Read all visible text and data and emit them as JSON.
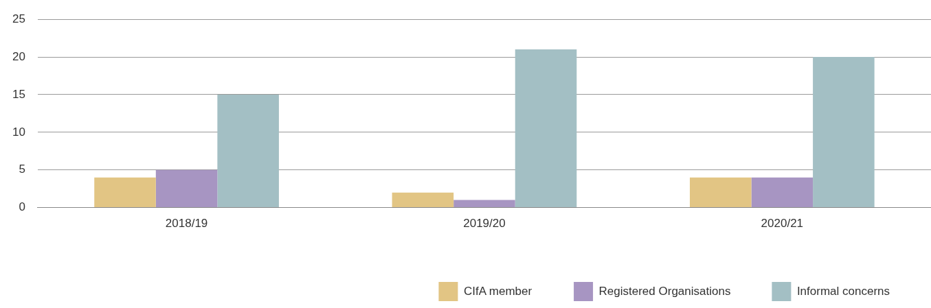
{
  "chart_data": {
    "type": "bar",
    "categories": [
      "2018/19",
      "2019/20",
      "2020/21"
    ],
    "series": [
      {
        "name": "CIfA member",
        "color": "#e2c584",
        "values": [
          4,
          2,
          4
        ]
      },
      {
        "name": "Registered Organisations",
        "color": "#a795c2",
        "values": [
          5,
          1,
          4
        ]
      },
      {
        "name": "Informal concerns",
        "color": "#a3bfc4",
        "values": [
          15,
          21,
          20
        ]
      }
    ],
    "ylim": [
      0,
      25
    ],
    "yticks": [
      0,
      5,
      10,
      15,
      20,
      25
    ],
    "grid": "y",
    "legend": "bottom right"
  }
}
